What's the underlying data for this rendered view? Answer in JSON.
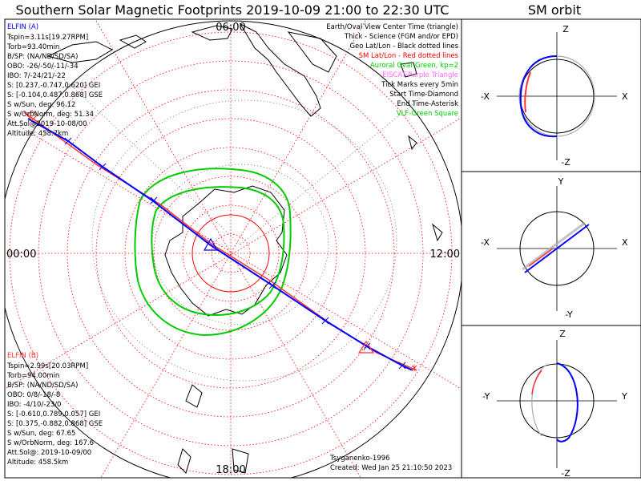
{
  "title": "Southern Solar Magnetic Footprints 2019-10-09 21:00 to 22:30 UTC",
  "orbit_title": "SM orbit",
  "mlt_labels": {
    "top": "06:00",
    "left": "00:00",
    "right": "12:00",
    "bottom": "18:00"
  },
  "elfin_a": {
    "name": "ELFIN (A)",
    "lines": [
      "Tspin=3.11s[19.27RPM]",
      "Torb=93.40min",
      "B/SP: (NA/ND/SD/SA)",
      "OBO: -26/-50/-11/-34",
      "IBO: 7/-24/21/-22",
      "S: [0.237,-0.747,0.620] GEI",
      "S: [-0.104,0.487,0.868] GSE",
      "S w/Sun, deg: 96.12",
      "S w/OrbNorm, deg: 51.34",
      "Att.Sol@2019-10-08/00",
      "Altitude: 458.7km"
    ]
  },
  "elfin_b": {
    "name": "ELFIN (B)",
    "lines": [
      "Tspin=2.99s[20.03RPM]",
      "Torb=94.00min",
      "B/SP: (NA/ND/SD/SA)",
      "OBO: 0/8/-18/-8",
      "IBO: -4/10/-23/0",
      "S: [-0.610,0.789,0.057] GEI",
      "S: [0.375,-0.882,0.868] GSE",
      "S w/Sun, deg: 67.65",
      "S w/OrbNorm, deg: 167.6",
      "Att.Sol@: 2019-10-09/00",
      "Altitude: 458.5km"
    ]
  },
  "legend": [
    {
      "text": "Earth/Oval View Center Time (triangle)",
      "color": "#000000"
    },
    {
      "text": "Thick - Science (FGM and/or EPD)",
      "color": "#000000"
    },
    {
      "text": "Geo Lat/Lon - Black dotted lines",
      "color": "#000000"
    },
    {
      "text": "SM Lat/Lon - Red dotted lines",
      "color": "#ff0000"
    },
    {
      "text": "Auroral Oval-Green, kp=2",
      "color": "#00cc00"
    },
    {
      "text": "EISCAT-Purple Triangle",
      "color": "#ff66ff"
    },
    {
      "text": "Tick Marks every 5min",
      "color": "#000000"
    },
    {
      "text": "Start Time-Diamond",
      "color": "#000000"
    },
    {
      "text": "End Time-Asterisk",
      "color": "#000000"
    },
    {
      "text": "VLF-Green Square",
      "color": "#00cc00"
    }
  ],
  "credit": "Tsyganenko-1996",
  "created": "Created: Wed Jan 25 21:10:50 2023",
  "panels": [
    {
      "top": "Z",
      "bottom": "-Z",
      "left": "-X",
      "right": "X"
    },
    {
      "top": "Y",
      "bottom": "-Y",
      "left": "-X",
      "right": "X"
    },
    {
      "top": "Z",
      "bottom": "-Z",
      "left": "-Y",
      "right": "Y"
    }
  ],
  "colors": {
    "elfin_a": "#0000ff",
    "elfin_b": "#ff3333",
    "oval": "#00cc00",
    "sm_grid": "#ff0000"
  }
}
